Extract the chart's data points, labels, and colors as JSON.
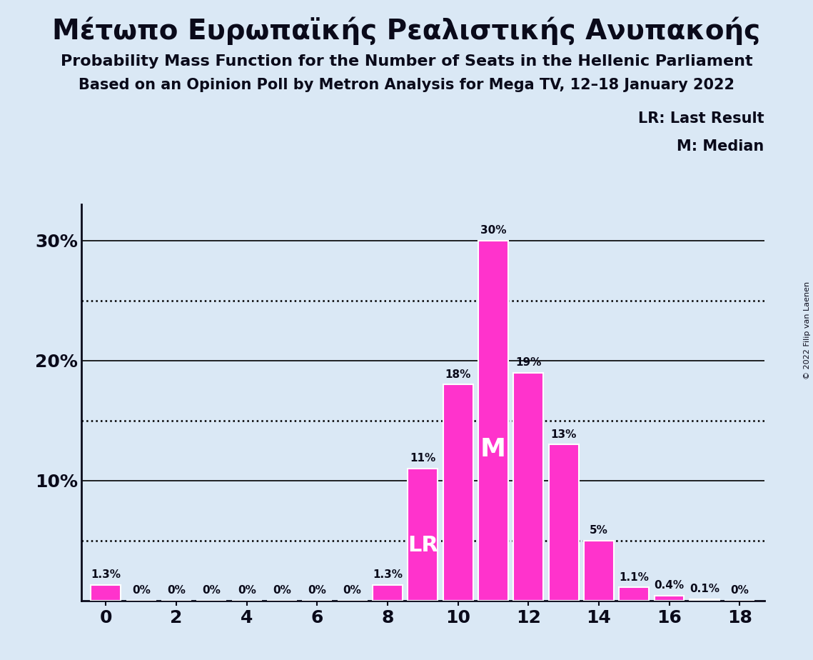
{
  "title1": "Μέτωπο Ευρωπαϊκής Ρεαλιστικής Ανυπακοής",
  "title2": "Probability Mass Function for the Number of Seats in the Hellenic Parliament",
  "title3": "Based on an Opinion Poll by Metron Analysis for Mega TV, 12–18 January 2022",
  "seats": [
    0,
    1,
    2,
    3,
    4,
    5,
    6,
    7,
    8,
    9,
    10,
    11,
    12,
    13,
    14,
    15,
    16,
    17,
    18
  ],
  "probabilities": [
    1.3,
    0.0,
    0.0,
    0.0,
    0.0,
    0.0,
    0.0,
    0.0,
    1.3,
    11.0,
    18.0,
    30.0,
    19.0,
    13.0,
    5.0,
    1.1,
    0.4,
    0.1,
    0.0
  ],
  "prob_labels": [
    "1.3%",
    "0%",
    "0%",
    "0%",
    "0%",
    "0%",
    "0%",
    "0%",
    "1.3%",
    "11%",
    "18%",
    "30%",
    "19%",
    "13%",
    "5%",
    "1.1%",
    "0.4%",
    "0.1%",
    "0%"
  ],
  "bar_color": "#FF33CC",
  "bar_edge_color": "white",
  "background_color": "#DAE8F5",
  "text_color": "#0a0a1a",
  "lr_seat": 9,
  "median_seat": 11,
  "dotted_lines": [
    5.0,
    15.0,
    25.0
  ],
  "solid_lines": [
    10.0,
    20.0,
    30.0
  ],
  "legend_lr": "LR: Last Result",
  "legend_m": "M: Median",
  "copyright": "© 2022 Filip van Laenen",
  "label_fontsize": 11,
  "title1_fontsize": 28,
  "title2_fontsize": 16,
  "title3_fontsize": 15,
  "axis_fontsize": 18,
  "legend_fontsize": 15,
  "lr_label_fontsize": 22,
  "m_label_fontsize": 26
}
